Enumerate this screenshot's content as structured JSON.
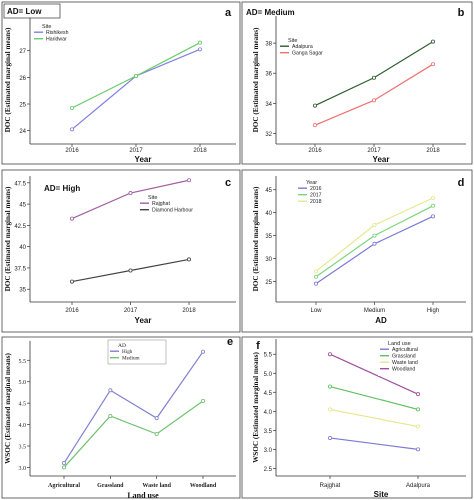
{
  "panels": [
    {
      "letter": "a",
      "chart_data": {
        "type": "line",
        "title": "AD= Low",
        "xlabel": "Year",
        "ylabel": "DOC (Estimated marginal means)",
        "categories": [
          "2016",
          "2017",
          "2018"
        ],
        "ylim": [
          23.5,
          28.3
        ],
        "yticks": [
          24,
          25,
          26,
          27
        ],
        "legend_title": "Site",
        "legend_position": "top-left",
        "series": [
          {
            "name": "Rishikesh",
            "color": "#8080e0",
            "values": [
              24.05,
              26.05,
              27.05
            ]
          },
          {
            "name": "Haridwar",
            "color": "#66cc66",
            "values": [
              24.85,
              26.05,
              27.3
            ]
          }
        ]
      }
    },
    {
      "letter": "b",
      "chart_data": {
        "type": "line",
        "title": "AD= Medium",
        "xlabel": "Year",
        "ylabel": "DOC (Estimated marginal means)",
        "categories": [
          "2016",
          "2017",
          "2018"
        ],
        "ylim": [
          31.3,
          39.8
        ],
        "yticks": [
          32,
          34,
          36,
          38
        ],
        "legend_title": "Site",
        "legend_position": "top-left",
        "series": [
          {
            "name": "Adalpura",
            "color": "#2e5e2e",
            "values": [
              33.85,
              35.7,
              38.1
            ]
          },
          {
            "name": "Ganga Sagar",
            "color": "#f07070",
            "values": [
              32.55,
              34.2,
              36.6
            ]
          }
        ]
      }
    },
    {
      "letter": "c",
      "chart_data": {
        "type": "line",
        "title": "AD= High",
        "xlabel": "Year",
        "ylabel": "DOC (Estimated marginal means)",
        "categories": [
          "2016",
          "2017",
          "2018"
        ],
        "ylim": [
          33.5,
          48.3
        ],
        "yticks": [
          35,
          37.5,
          40,
          42.5,
          45,
          47.5
        ],
        "ytick_labels": [
          "35",
          "37.5",
          "40",
          "42.5",
          "45",
          "47.5"
        ],
        "legend_title": "Site",
        "legend_position": "top-right",
        "series": [
          {
            "name": "Rajghat",
            "color": "#a060a0",
            "values": [
              43.3,
              46.3,
              47.8
            ]
          },
          {
            "name": "Diamond Harbour",
            "color": "#444444",
            "values": [
              35.9,
              37.2,
              38.5
            ]
          }
        ]
      }
    },
    {
      "letter": "d",
      "chart_data": {
        "type": "line",
        "title": "",
        "xlabel": "AD",
        "ylabel": "DOC (Estimated marginal means)",
        "categories": [
          "Low",
          "Medium",
          "High"
        ],
        "ylim": [
          20.5,
          48
        ],
        "yticks": [
          25,
          30,
          35,
          40,
          45
        ],
        "legend_title": "Year",
        "legend_position": "top-left",
        "series": [
          {
            "name": "2016",
            "color": "#7a7ad6",
            "values": [
              24.5,
              33.2,
              39.2
            ]
          },
          {
            "name": "2017",
            "color": "#7ad67a",
            "values": [
              26.0,
              35.0,
              41.5
            ]
          },
          {
            "name": "2018",
            "color": "#e8e890",
            "values": [
              27.2,
              37.3,
              43.2
            ]
          }
        ]
      }
    },
    {
      "letter": "e",
      "chart_data": {
        "type": "line",
        "title": "",
        "xlabel": "Land use",
        "ylabel": "WSOC (Estimated marginal means)",
        "categories": [
          "Agricultural",
          "Grassland",
          "Waste land",
          "Woodland"
        ],
        "ylim": [
          2.8,
          5.95
        ],
        "yticks": [
          3.0,
          3.5,
          4.0,
          4.5,
          5.0,
          5.5
        ],
        "ytick_labels": [
          "3.0",
          "3.5",
          "4.0",
          "4.5",
          "5.0",
          "5.5"
        ],
        "legend_title": "AD",
        "legend_position": "top-center",
        "series": [
          {
            "name": "High",
            "color": "#8080d0",
            "values": [
              3.1,
              4.8,
              4.15,
              5.7
            ]
          },
          {
            "name": "Medium",
            "color": "#70c070",
            "values": [
              3.0,
              4.2,
              3.78,
              4.55
            ]
          }
        ]
      }
    },
    {
      "letter": "f",
      "chart_data": {
        "type": "line",
        "title": "",
        "xlabel": "Site",
        "ylabel": "WSOC (Estimated marginal means)",
        "categories": [
          "Rajghat",
          "Adalpura"
        ],
        "ylim": [
          2.3,
          5.9
        ],
        "yticks": [
          2.5,
          3.0,
          3.5,
          4.0,
          4.5,
          5.0,
          5.5
        ],
        "ytick_labels": [
          "2.5",
          "3.0",
          "3.5",
          "4.0",
          "4.5",
          "5.0",
          "5.5"
        ],
        "legend_title": "Land use",
        "legend_position": "top-right",
        "series": [
          {
            "name": "Agricultural",
            "color": "#7a7ad6",
            "values": [
              3.3,
              3.0
            ]
          },
          {
            "name": "Grassland",
            "color": "#60c060",
            "values": [
              4.65,
              4.05
            ]
          },
          {
            "name": "Waste land",
            "color": "#e8e890",
            "values": [
              4.05,
              3.6
            ]
          },
          {
            "name": "Woodland",
            "color": "#a050a0",
            "values": [
              5.5,
              4.45
            ]
          }
        ]
      }
    }
  ]
}
